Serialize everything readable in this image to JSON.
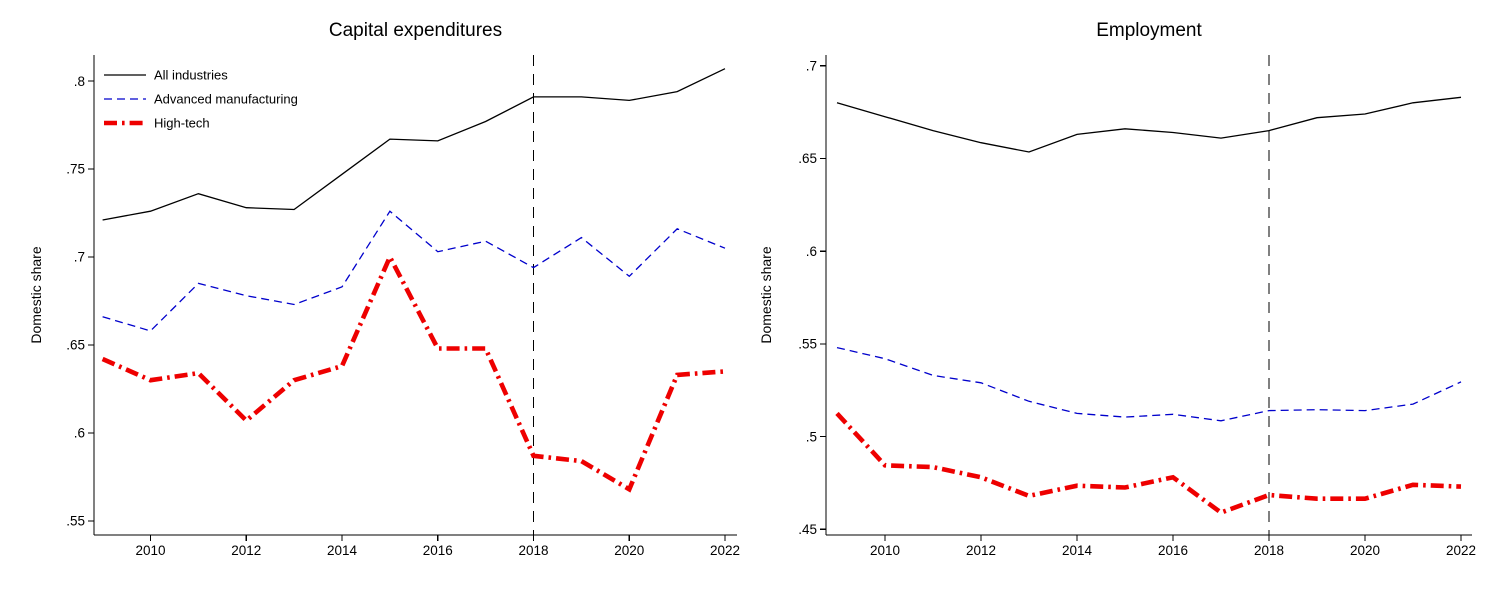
{
  "figure": {
    "background": "#FFFFFF",
    "accent_colors": {
      "all_industries": "#000000",
      "advanced_manufacturing": "#0000CC",
      "high_tech": "#EE0000",
      "axis": "#000000",
      "reference_line": "#000000"
    }
  },
  "chart_data": [
    {
      "type": "line",
      "title": "Capital expenditures",
      "ylabel": "Domestic share",
      "xlabel": "",
      "x": [
        2009,
        2010,
        2011,
        2012,
        2013,
        2014,
        2015,
        2016,
        2017,
        2018,
        2019,
        2020,
        2021,
        2022
      ],
      "series": [
        {
          "name": "All industries",
          "color": "#000000",
          "style": "solid",
          "width": 1.3,
          "values": [
            0.721,
            0.726,
            0.736,
            0.728,
            0.727,
            0.747,
            0.767,
            0.766,
            0.777,
            0.791,
            0.791,
            0.789,
            0.794,
            0.807
          ]
        },
        {
          "name": "Advanced manufacturing",
          "color": "#0000CC",
          "style": "dashed",
          "width": 1.3,
          "values": [
            0.666,
            0.658,
            0.685,
            0.678,
            0.673,
            0.683,
            0.726,
            0.703,
            0.709,
            0.694,
            0.711,
            0.689,
            0.716,
            0.705
          ]
        },
        {
          "name": "High-tech",
          "color": "#EE0000",
          "style": "dashdot",
          "width": 4.6,
          "values": [
            0.642,
            0.63,
            0.634,
            0.607,
            0.63,
            0.638,
            0.7,
            0.648,
            0.648,
            0.587,
            0.584,
            0.568,
            0.633,
            0.635
          ]
        }
      ],
      "xticks": {
        "values": [
          2010,
          2012,
          2014,
          2016,
          2018,
          2020,
          2022
        ],
        "labels": [
          "2010",
          "2012",
          "2014",
          "2016",
          "2018",
          "2020",
          "2022"
        ]
      },
      "yticks": {
        "values": [
          0.55,
          0.6,
          0.65,
          0.7,
          0.75,
          0.8
        ],
        "labels": [
          ".55",
          ".6",
          ".65",
          ".7",
          ".75",
          ".8"
        ]
      },
      "xlim": [
        2008.82,
        2022.25
      ],
      "ylim": [
        0.542,
        0.8148
      ],
      "vline": {
        "x": 2018,
        "style": "dashed"
      },
      "legend": {
        "position": "top-left",
        "items": [
          "All industries",
          "Advanced manufacturing",
          "High-tech"
        ]
      },
      "grid": false
    },
    {
      "type": "line",
      "title": "Employment",
      "ylabel": "Domestic share",
      "xlabel": "",
      "x": [
        2009,
        2010,
        2011,
        2012,
        2013,
        2014,
        2015,
        2016,
        2017,
        2018,
        2019,
        2020,
        2021,
        2022
      ],
      "series": [
        {
          "name": "All industries",
          "color": "#000000",
          "style": "solid",
          "width": 1.3,
          "values": [
            0.68,
            0.6725,
            0.665,
            0.6585,
            0.6535,
            0.663,
            0.666,
            0.664,
            0.661,
            0.665,
            0.672,
            0.674,
            0.68,
            0.683
          ]
        },
        {
          "name": "Advanced manufacturing",
          "color": "#0000CC",
          "style": "dashed",
          "width": 1.3,
          "values": [
            0.548,
            0.542,
            0.533,
            0.529,
            0.519,
            0.5125,
            0.5105,
            0.512,
            0.5085,
            0.514,
            0.5145,
            0.514,
            0.5175,
            0.5295
          ]
        },
        {
          "name": "High-tech",
          "color": "#EE0000",
          "style": "dashdot",
          "width": 4.6,
          "values": [
            0.5125,
            0.4845,
            0.4835,
            0.478,
            0.468,
            0.4735,
            0.4725,
            0.478,
            0.459,
            0.4685,
            0.4665,
            0.4665,
            0.474,
            0.473
          ]
        }
      ],
      "xticks": {
        "values": [
          2010,
          2012,
          2014,
          2016,
          2018,
          2020,
          2022
        ],
        "labels": [
          "2010",
          "2012",
          "2014",
          "2016",
          "2018",
          "2020",
          "2022"
        ]
      },
      "yticks": {
        "values": [
          0.45,
          0.5,
          0.55,
          0.6,
          0.65,
          0.7
        ],
        "labels": [
          ".45",
          ".5",
          ".55",
          ".6",
          ".65",
          ".7"
        ]
      },
      "xlim": [
        2008.77,
        2022.23
      ],
      "ylim": [
        0.4469,
        0.7058
      ],
      "vline": {
        "x": 2018,
        "style": "dashed"
      },
      "legend": null,
      "grid": false
    }
  ]
}
